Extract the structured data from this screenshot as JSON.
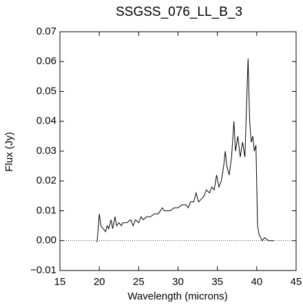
{
  "chart_data": {
    "type": "line",
    "title": "SSGSS_076_LL_B_3",
    "xlabel": "Wavelength (microns)",
    "ylabel": "Flux (Jy)",
    "xlim": [
      15,
      45
    ],
    "xticks": [
      15,
      20,
      25,
      30,
      35,
      40,
      45
    ],
    "ylim": [
      -0.01,
      0.07
    ],
    "yticks": [
      {
        "value": -0.01,
        "label": "−0.01"
      },
      {
        "value": 0,
        "label": "0.00"
      },
      {
        "value": 0.01,
        "label": "0.01"
      },
      {
        "value": 0.02,
        "label": "0.02"
      },
      {
        "value": 0.03,
        "label": "0.03"
      },
      {
        "value": 0.04,
        "label": "0.04"
      },
      {
        "value": 0.05,
        "label": "0.05"
      },
      {
        "value": 0.06,
        "label": "0.06"
      },
      {
        "value": 0.07,
        "label": "0.07"
      }
    ],
    "series": [
      {
        "color": "#000000",
        "x": [
          19.7,
          19.8,
          20.0,
          20.2,
          20.5,
          20.8,
          21.0,
          21.2,
          21.5,
          21.7,
          22.0,
          22.2,
          22.5,
          22.8,
          23.0,
          23.5,
          24.0,
          24.3,
          24.6,
          25.0,
          25.3,
          25.6,
          26.0,
          26.5,
          27.0,
          27.5,
          28.0,
          28.3,
          28.6,
          29.0,
          29.5,
          30.0,
          30.5,
          31.0,
          31.3,
          31.6,
          32.0,
          32.3,
          32.6,
          33.0,
          33.3,
          33.6,
          34.0,
          34.3,
          34.6,
          34.9,
          35.2,
          35.5,
          35.8,
          36.0,
          36.2,
          36.5,
          36.8,
          37.1,
          37.3,
          37.6,
          37.9,
          38.2,
          38.5,
          38.7,
          38.9,
          39.1,
          39.3,
          39.5,
          39.7,
          39.9,
          40.1,
          40.3,
          40.5,
          40.7,
          41.0,
          41.5,
          42.2
        ],
        "values": [
          -0.0005,
          0.002,
          0.009,
          0.005,
          0.004,
          0.003,
          0.005,
          0.004,
          0.007,
          0.004,
          0.008,
          0.005,
          0.006,
          0.005,
          0.006,
          0.006,
          0.007,
          0.005,
          0.007,
          0.006,
          0.008,
          0.007,
          0.008,
          0.008,
          0.009,
          0.009,
          0.011,
          0.01,
          0.01,
          0.01,
          0.011,
          0.011,
          0.012,
          0.012,
          0.011,
          0.013,
          0.013,
          0.016,
          0.013,
          0.014,
          0.015,
          0.017,
          0.016,
          0.018,
          0.017,
          0.022,
          0.018,
          0.02,
          0.025,
          0.03,
          0.025,
          0.022,
          0.028,
          0.04,
          0.03,
          0.035,
          0.028,
          0.033,
          0.028,
          0.045,
          0.061,
          0.04,
          0.033,
          0.035,
          0.03,
          0.032,
          0.005,
          0.002,
          0.001,
          0.0,
          0.001,
          0.0,
          0.0
        ]
      }
    ]
  }
}
